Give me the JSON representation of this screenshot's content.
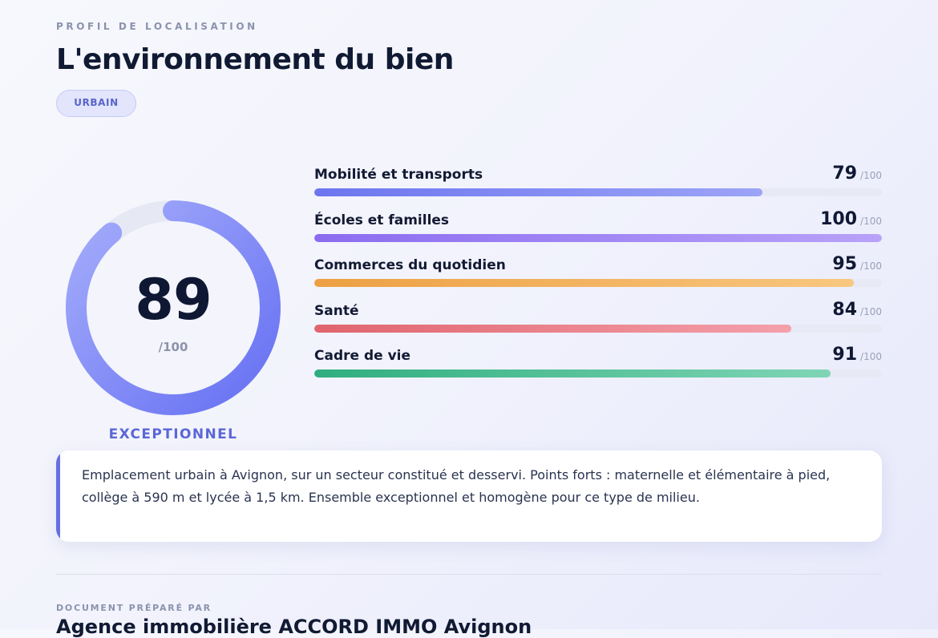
{
  "header": {
    "eyebrow": "PROFIL DE LOCALISATION",
    "title": "L'environnement du bien",
    "badge": "URBAIN"
  },
  "gauge": {
    "score": 89,
    "max_label": "/100",
    "rating": "EXCEPTIONNEL",
    "value_fraction": 0.89,
    "colors": {
      "track": "#e6e9f4",
      "start": "#6670f2",
      "end": "#a5adfb"
    }
  },
  "categories": [
    {
      "label": "Mobilité et transports",
      "score": "79",
      "max_label": "/100",
      "value": 79,
      "color_start": "#6d75ef",
      "color_end": "#9ca4f7"
    },
    {
      "label": "Écoles et familles",
      "score": "100",
      "max_label": "/100",
      "value": 100,
      "color_start": "#8b6cf0",
      "color_end": "#b8a2f9"
    },
    {
      "label": "Commerces du quotidien",
      "score": "95",
      "max_label": "/100",
      "value": 95,
      "color_start": "#eda043",
      "color_end": "#f8c77f"
    },
    {
      "label": "Santé",
      "score": "84",
      "max_label": "/100",
      "value": 84,
      "color_start": "#e0646e",
      "color_end": "#f4a0aa"
    },
    {
      "label": "Cadre de vie",
      "score": "91",
      "max_label": "/100",
      "value": 91,
      "color_start": "#2fae80",
      "color_end": "#7fd5b4"
    }
  ],
  "summary": {
    "text": "Emplacement urbain à Avignon, sur un secteur constitué et desservi. Points forts : maternelle et élémentaire à pied, collège à 590 m et lycée à 1,5 km. Ensemble exceptionnel et homogène pour ce type de milieu.",
    "accent_color": "#646fe3"
  },
  "footer": {
    "prepared_by_label": "DOCUMENT PRÉPARÉ PAR",
    "agency_name": "Agence immobilière ACCORD IMMO Avignon"
  }
}
